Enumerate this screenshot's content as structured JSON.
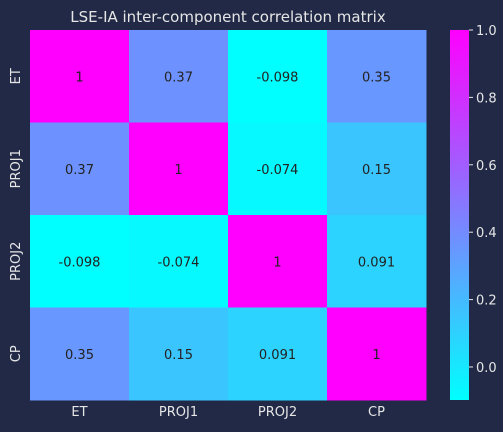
{
  "chart_data": {
    "type": "heatmap",
    "title": "LSE-IA inter-component correlation matrix",
    "xlabel": "",
    "ylabel": "",
    "x_categories": [
      "ET",
      "PROJ1",
      "PROJ2",
      "CP"
    ],
    "y_categories": [
      "ET",
      "PROJ1",
      "PROJ2",
      "CP"
    ],
    "values": [
      [
        1,
        0.37,
        -0.098,
        0.35
      ],
      [
        0.37,
        1,
        -0.074,
        0.15
      ],
      [
        -0.098,
        -0.074,
        1,
        0.091
      ],
      [
        0.35,
        0.15,
        0.091,
        1
      ]
    ],
    "cell_labels": [
      [
        "1",
        "0.37",
        "-0.098",
        "0.35"
      ],
      [
        "0.37",
        "1",
        "-0.074",
        "0.15"
      ],
      [
        "-0.098",
        "-0.074",
        "1",
        "0.091"
      ],
      [
        "0.35",
        "0.15",
        "0.091",
        "1"
      ]
    ],
    "colormap": "cool",
    "colormap_low": "#00ffff",
    "colormap_high": "#ff00ff",
    "value_range": [
      -0.098,
      1
    ],
    "colorbar_ticks": [
      0.0,
      0.2,
      0.4,
      0.6,
      0.8,
      1.0
    ],
    "colorbar_tick_labels": [
      "0.0",
      "0.2",
      "0.4",
      "0.6",
      "0.8",
      "1.0"
    ],
    "grid": false,
    "legend": "colorbar-right"
  },
  "colors": {
    "background": "#212946",
    "text": "#e6e6e6",
    "cell_text": "#222222"
  }
}
